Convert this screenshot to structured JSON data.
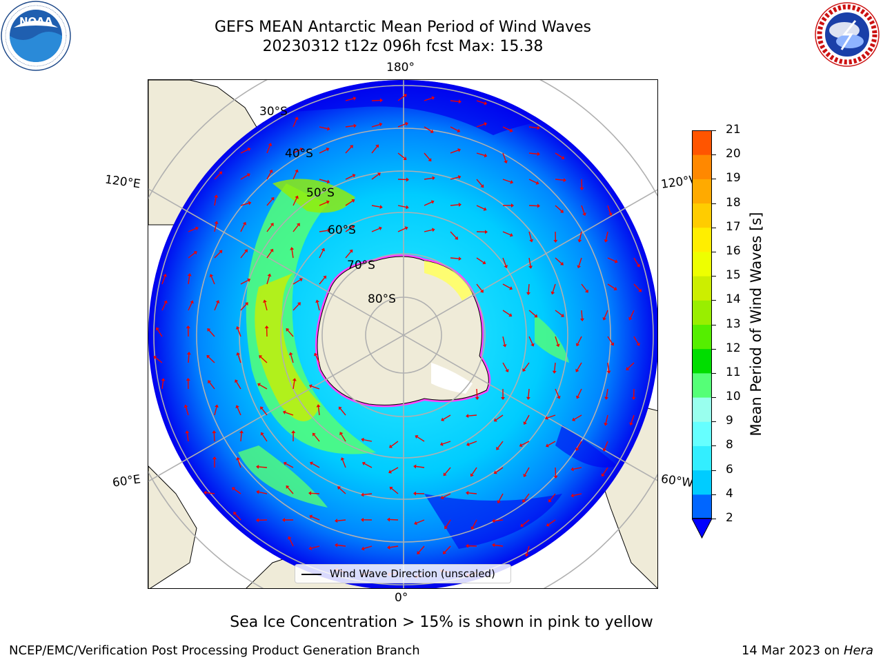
{
  "title": {
    "line1": "GEFS MEAN Antarctic Mean Period of Wind Waves",
    "line2": "20230312 t12z 096h fcst   Max: 15.38"
  },
  "logos": {
    "noaa": {
      "text": "NOAA",
      "ring_text": "NATIONAL OCEANIC AND ATMOSPHERIC ADMINISTRATION · U.S. DEPARTMENT OF COMMERCE"
    },
    "nws": {
      "ring_text": "NATIONAL WEATHER SERVICE"
    }
  },
  "map": {
    "projection": "South Polar Stereographic",
    "longitude_labels": {
      "top": "180°",
      "bottom": "0°",
      "upper_left": "120°E",
      "upper_right": "120°W",
      "lower_left": "60°E",
      "lower_right": "60°W"
    },
    "latitude_labels": [
      "30°S",
      "40°S",
      "50°S",
      "60°S",
      "70°S",
      "80°S"
    ],
    "colors": {
      "land": "#efebd8",
      "ice_low": "#ff33ff",
      "ice_high": "#ffff66",
      "arrows": "#ee0000",
      "grid": "#b0b0b0"
    }
  },
  "colorbar": {
    "label": "Mean Period of Wind Waves [s]",
    "ticks": [
      "2",
      "4",
      "6",
      "8",
      "9",
      "10",
      "11",
      "12",
      "13",
      "14",
      "15",
      "16",
      "17",
      "18",
      "19",
      "20",
      "21"
    ],
    "colors": [
      "#0066ff",
      "#00ccff",
      "#33eeff",
      "#66ffff",
      "#99ffee",
      "#55ff77",
      "#00dd00",
      "#55ee00",
      "#99ee00",
      "#ccee00",
      "#eeff00",
      "#ffee00",
      "#ffcc00",
      "#ffaa00",
      "#ff8800",
      "#ff5500",
      "#ff2200",
      "#ff0000"
    ],
    "extend_min_color": "#0000ff"
  },
  "legend": {
    "label": "Wind Wave Direction (unscaled)"
  },
  "note": "Sea Ice Concentration > 15% is shown in pink to yellow",
  "footer": {
    "left": "NCEP/EMC/Verification Post Processing Product Generation Branch",
    "right_date": "14 Mar 2023 on ",
    "right_host": "Hera"
  }
}
